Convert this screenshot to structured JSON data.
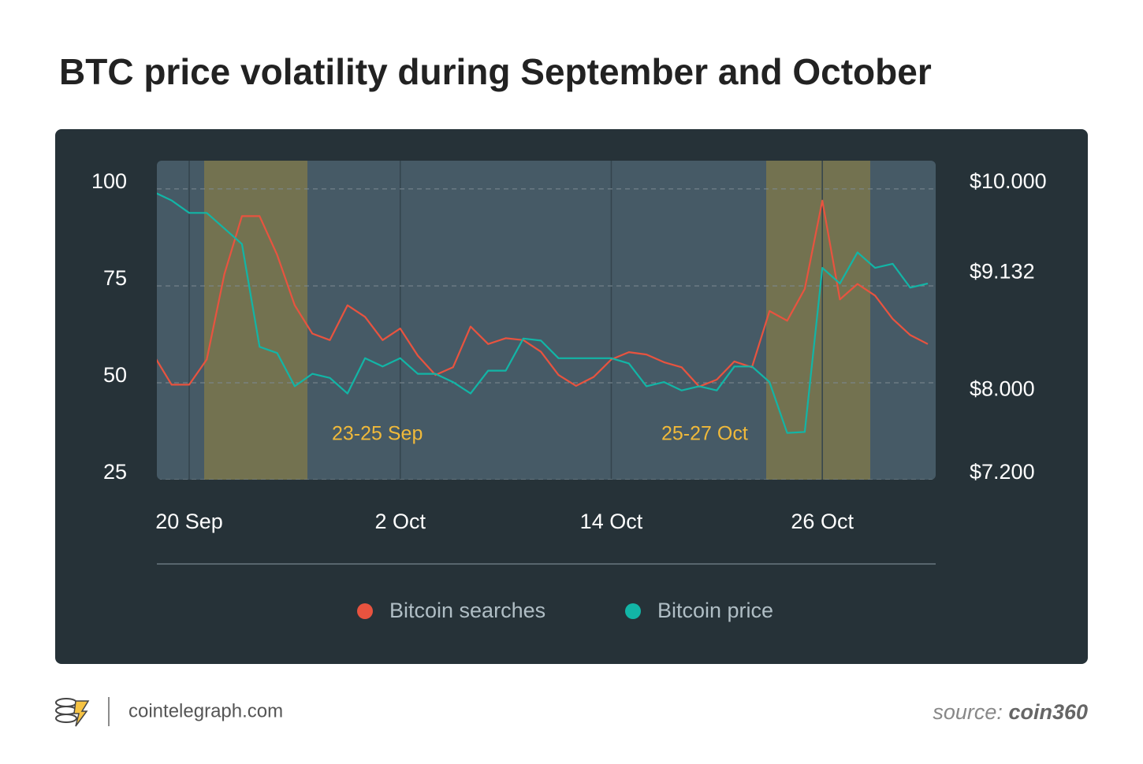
{
  "chart_data": {
    "type": "line",
    "title": "BTC price volatility during September and October",
    "categories": [
      null,
      null,
      "20 Sep",
      null,
      null,
      null,
      null,
      null,
      null,
      null,
      null,
      null,
      null,
      null,
      "2 Oct",
      null,
      null,
      null,
      null,
      null,
      null,
      null,
      null,
      null,
      null,
      null,
      "14 Oct",
      null,
      null,
      null,
      null,
      null,
      null,
      null,
      null,
      null,
      null,
      null,
      "26 Oct",
      null,
      null,
      null,
      null,
      null,
      null
    ],
    "series": [
      {
        "name": "Bitcoin searches",
        "color": "#e8533f",
        "values": [
          57,
          49.5,
          49.5,
          56,
          78,
          93,
          93,
          83,
          70,
          62.7,
          61,
          70,
          67,
          61,
          64,
          57,
          52,
          54,
          64.5,
          60,
          61.5,
          61,
          58,
          52,
          49.2,
          51.5,
          56,
          57.9,
          57.3,
          55.3,
          54,
          49,
          50.8,
          55.5,
          54,
          68.5,
          66,
          74.2,
          97,
          71.5,
          75.5,
          72.5,
          66.5,
          62.3,
          60
        ]
      },
      {
        "name": "Bitcoin price",
        "color": "#12b5a6",
        "axis": "y2",
        "values": [
          9970,
          9890,
          9770,
          9770,
          9620,
          9470,
          8480,
          8420,
          8100,
          8220,
          8180,
          8030,
          8370,
          8290,
          8370,
          8220,
          8220,
          8140,
          8030,
          8250,
          8250,
          8560,
          8540,
          8370,
          8370,
          8370,
          8370,
          8320,
          8100,
          8140,
          8060,
          8100,
          8060,
          8290,
          8290,
          8140,
          7650,
          7660,
          9240,
          9090,
          9390,
          9240,
          9280,
          9050,
          9090
        ]
      }
    ],
    "ylim": [
      25,
      107.3
    ],
    "yticks": [
      25,
      50,
      75,
      100
    ],
    "y2lim": [
      7200,
      10273
    ],
    "y2ticks": [
      {
        "value": 7200,
        "label": "$7.200"
      },
      {
        "value": 8000,
        "label": "$8.000"
      },
      {
        "value": 9132,
        "label": "$9.132"
      },
      {
        "value": 10000,
        "label": "$10.000"
      }
    ],
    "grid": true,
    "annotations": [
      "23-25 Sep",
      "25-27 Oct"
    ],
    "legend": "bottom"
  },
  "footer": {
    "site": "cointelegraph.com",
    "source_label": "source:",
    "source": "coin360"
  }
}
